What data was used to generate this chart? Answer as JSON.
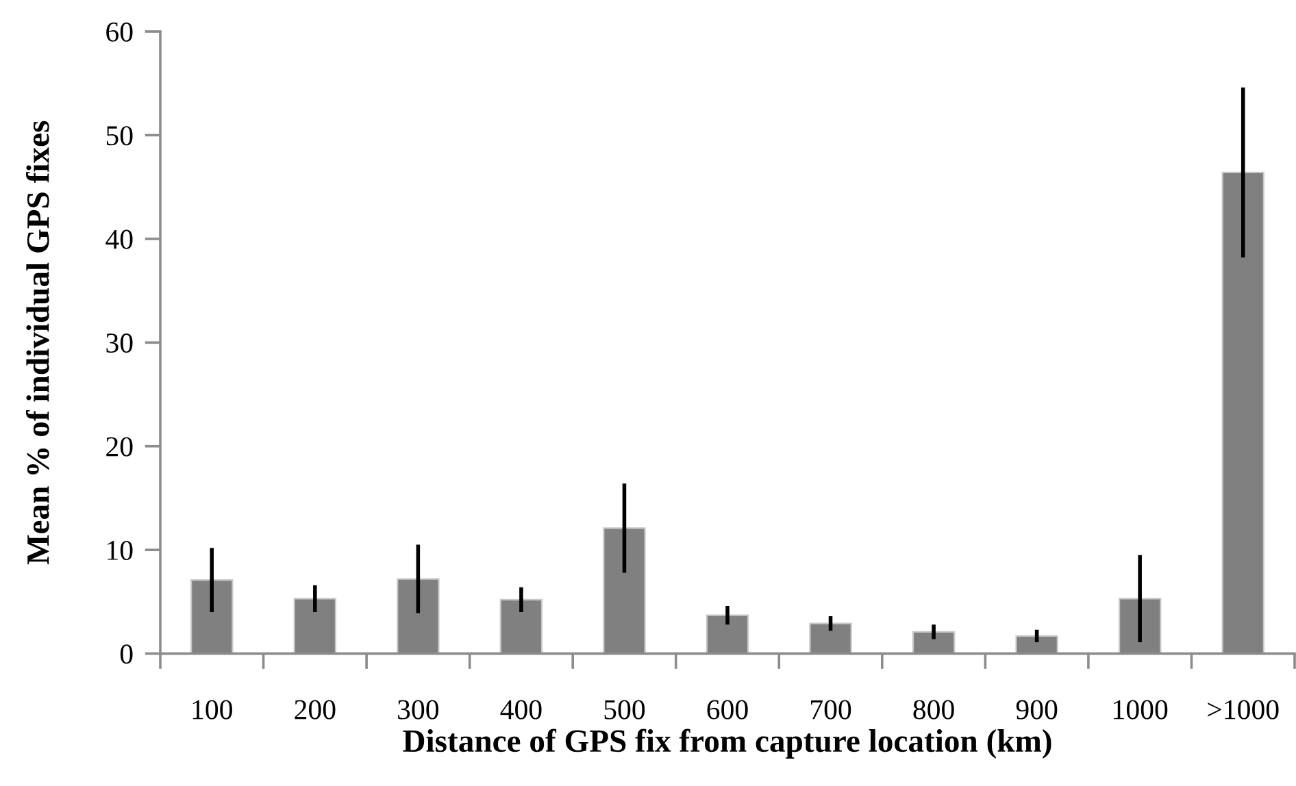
{
  "chart_data": {
    "type": "bar",
    "xlabel": "Distance of GPS fix from capture location (km)",
    "ylabel": "Mean % of individual GPS fixes",
    "categories": [
      "100",
      "200",
      "300",
      "400",
      "500",
      "600",
      "700",
      "800",
      "900",
      "1000",
      ">1000"
    ],
    "values": [
      7.1,
      5.3,
      7.2,
      5.2,
      12.1,
      3.7,
      2.9,
      2.1,
      1.7,
      5.3,
      46.4
    ],
    "errors": [
      3.1,
      1.3,
      3.3,
      1.2,
      4.3,
      0.9,
      0.7,
      0.7,
      0.6,
      4.2,
      8.2
    ],
    "color": "#808080",
    "ylim": [
      0,
      60
    ],
    "yticks": [
      0,
      10,
      20,
      30,
      40,
      50,
      60
    ],
    "grid": false
  }
}
